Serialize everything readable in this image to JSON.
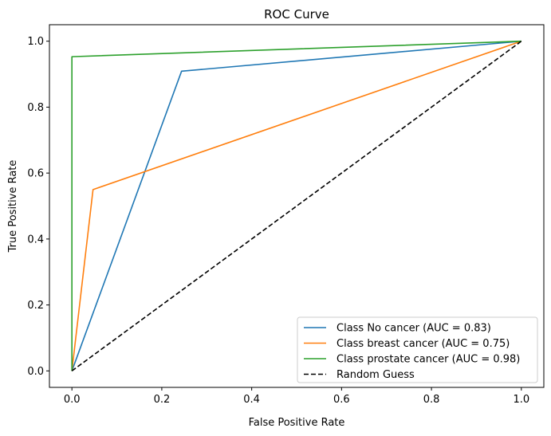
{
  "chart_data": {
    "type": "line",
    "title": "ROC Curve",
    "xlabel": "False Positive Rate",
    "ylabel": "True Positive Rate",
    "xlim": [
      -0.05,
      1.05
    ],
    "ylim": [
      -0.05,
      1.05
    ],
    "xticks": [
      0.0,
      0.2,
      0.4,
      0.6,
      0.8,
      1.0
    ],
    "yticks": [
      0.0,
      0.2,
      0.4,
      0.6,
      0.8,
      1.0
    ],
    "xtick_labels": [
      "0.0",
      "0.2",
      "0.4",
      "0.6",
      "0.8",
      "1.0"
    ],
    "ytick_labels": [
      "0.0",
      "0.2",
      "0.4",
      "0.6",
      "0.8",
      "1.0"
    ],
    "grid": false,
    "legend_position": "lower-right",
    "series": [
      {
        "name": "Class No cancer (AUC = 0.83)",
        "color": "#1f77b4",
        "style": "solid",
        "x": [
          0.0,
          0.244,
          1.0
        ],
        "y": [
          0.0,
          0.909,
          1.0
        ]
      },
      {
        "name": "Class breast cancer (AUC = 0.75)",
        "color": "#ff7f0e",
        "style": "solid",
        "x": [
          0.0,
          0.047,
          1.0
        ],
        "y": [
          0.0,
          0.55,
          1.0
        ]
      },
      {
        "name": "Class prostate cancer (AUC = 0.98)",
        "color": "#2ca02c",
        "style": "solid",
        "x": [
          0.0,
          0.0,
          1.0
        ],
        "y": [
          0.0,
          0.953,
          1.0
        ]
      },
      {
        "name": "Random Guess",
        "color": "#000000",
        "style": "dashed",
        "x": [
          0.0,
          1.0
        ],
        "y": [
          0.0,
          1.0
        ]
      }
    ]
  }
}
